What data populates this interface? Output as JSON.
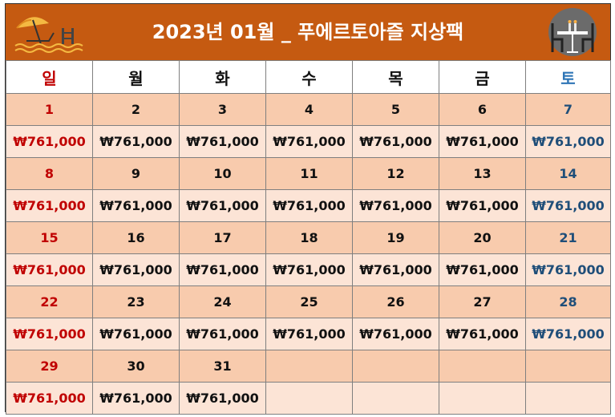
{
  "title": "2023년 01월 _ 푸에르토아즐 지상팩",
  "weekdays": [
    "일",
    "월",
    "화",
    "수",
    "목",
    "금",
    "토"
  ],
  "weeks": [
    {
      "days": [
        "1",
        "2",
        "3",
        "4",
        "5",
        "6",
        "7"
      ],
      "prices": [
        "₩761,000",
        "₩761,000",
        "₩761,000",
        "₩761,000",
        "₩761,000",
        "₩761,000",
        "₩761,000"
      ]
    },
    {
      "days": [
        "8",
        "9",
        "10",
        "11",
        "12",
        "13",
        "14"
      ],
      "prices": [
        "₩761,000",
        "₩761,000",
        "₩761,000",
        "₩761,000",
        "₩761,000",
        "₩761,000",
        "₩761,000"
      ]
    },
    {
      "days": [
        "15",
        "16",
        "17",
        "18",
        "19",
        "20",
        "21"
      ],
      "prices": [
        "₩761,000",
        "₩761,000",
        "₩761,000",
        "₩761,000",
        "₩761,000",
        "₩761,000",
        "₩761,000"
      ]
    },
    {
      "days": [
        "22",
        "23",
        "24",
        "25",
        "26",
        "27",
        "28"
      ],
      "prices": [
        "₩761,000",
        "₩761,000",
        "₩761,000",
        "₩761,000",
        "₩761,000",
        "₩761,000",
        "₩761,000"
      ]
    },
    {
      "days": [
        "29",
        "30",
        "31",
        "",
        "",
        "",
        ""
      ],
      "prices": [
        "₩761,000",
        "₩761,000",
        "₩761,000",
        "",
        "",
        "",
        ""
      ]
    }
  ],
  "colors": {
    "header_bg": "#c55a11",
    "day_row_bg": "#f8cbad",
    "price_row_bg": "#fce4d6",
    "sunday": "#c00000",
    "saturday": "#1f4e79"
  },
  "icons": {
    "left": "beach-umbrella-pool-icon",
    "right": "restaurant-table-icon"
  }
}
